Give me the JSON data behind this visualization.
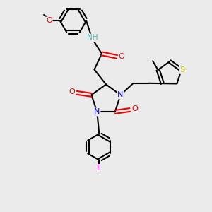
{
  "background_color": "#ebebeb",
  "bond_color": "#000000",
  "atom_colors": {
    "C": "#000000",
    "N": "#0000ee",
    "O": "#ee0000",
    "F": "#ee00ee",
    "S": "#cccc00",
    "H_label": "#5fafaf"
  },
  "figsize": [
    3.0,
    3.0
  ],
  "dpi": 100,
  "xlim": [
    0,
    10
  ],
  "ylim": [
    0,
    10
  ]
}
